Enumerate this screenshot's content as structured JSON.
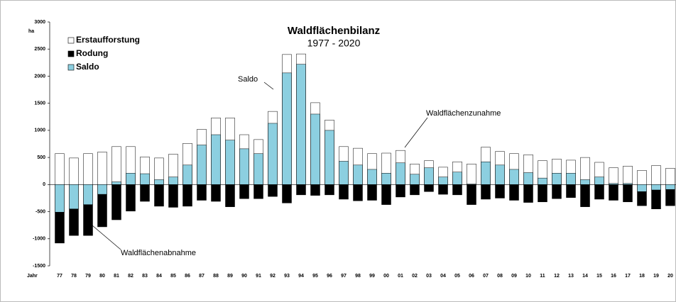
{
  "chart_data": {
    "type": "bar",
    "title": "Waldflächenbilanz",
    "subtitle": "1977 - 2020",
    "y_label": "ha",
    "x_label": "Jahr",
    "annotations": [
      "Saldo",
      "Waldflächenzunahme",
      "Waldflächenabnahme"
    ],
    "categories": [
      "77",
      "78",
      "79",
      "80",
      "81",
      "82",
      "83",
      "84",
      "85",
      "86",
      "87",
      "88",
      "89",
      "90",
      "91",
      "92",
      "93",
      "94",
      "95",
      "96",
      "97",
      "98",
      "99",
      "00",
      "01",
      "02",
      "03",
      "04",
      "05",
      "06",
      "07",
      "08",
      "09",
      "10",
      "11",
      "12",
      "13",
      "14",
      "15",
      "16",
      "17",
      "18",
      "19",
      "20"
    ],
    "series": [
      {
        "name": "Erstaufforstung",
        "color": "#ffffff",
        "values": [
          570,
          490,
          570,
          600,
          700,
          700,
          510,
          490,
          560,
          760,
          1020,
          1230,
          1230,
          920,
          830,
          1350,
          2400,
          2410,
          1510,
          1190,
          700,
          670,
          570,
          580,
          630,
          380,
          440,
          320,
          420,
          380,
          690,
          610,
          570,
          550,
          440,
          470,
          450,
          500,
          410,
          310,
          340,
          260,
          350,
          300
        ]
      },
      {
        "name": "Rodung",
        "color": "#000000",
        "values": [
          -1080,
          -940,
          -940,
          -780,
          -650,
          -490,
          -310,
          -400,
          -420,
          -400,
          -290,
          -310,
          -410,
          -260,
          -260,
          -220,
          -340,
          -190,
          -200,
          -190,
          -270,
          -300,
          -290,
          -370,
          -230,
          -190,
          -130,
          -180,
          -190,
          -370,
          -270,
          -250,
          -290,
          -330,
          -320,
          -260,
          -240,
          -410,
          -270,
          -290,
          -320,
          -390,
          -450,
          -390
        ]
      },
      {
        "name": "Saldo",
        "color": "#8ccfe0",
        "values": [
          -510,
          -450,
          -370,
          -180,
          50,
          210,
          200,
          90,
          140,
          360,
          730,
          920,
          820,
          660,
          570,
          1130,
          2060,
          2220,
          1300,
          1000,
          430,
          360,
          280,
          210,
          400,
          190,
          310,
          140,
          230,
          10,
          420,
          360,
          280,
          220,
          120,
          210,
          210,
          90,
          140,
          20,
          20,
          -130,
          -100,
          -90
        ]
      }
    ],
    "ylim": [
      -1500,
      3000
    ],
    "yticks": [
      -1500,
      -1000,
      -500,
      0,
      500,
      1000,
      1500,
      2000,
      2500,
      3000
    ],
    "legend": "upper left"
  }
}
